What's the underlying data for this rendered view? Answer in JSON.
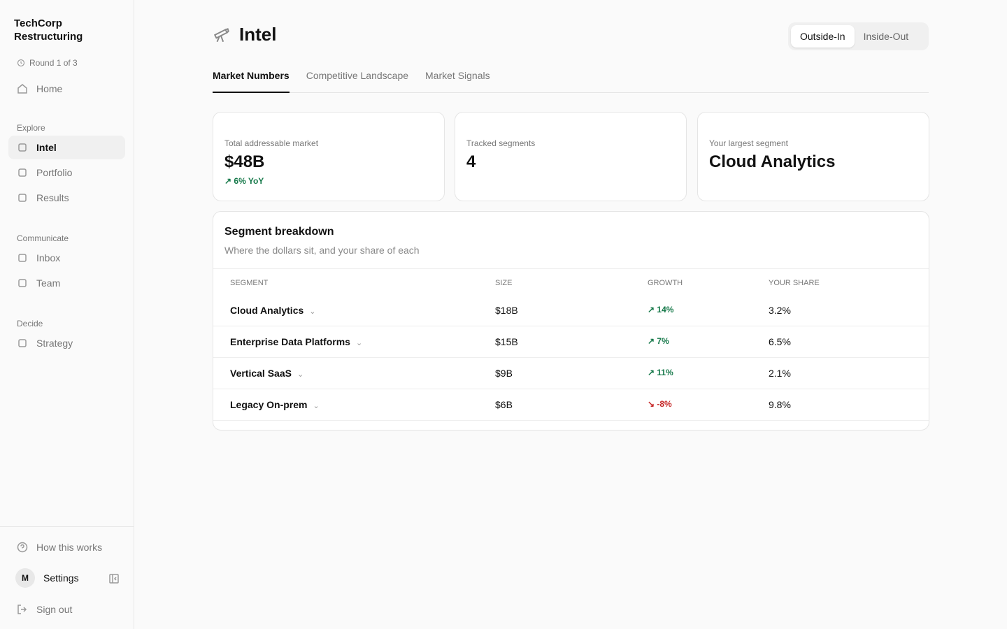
{
  "sidebar": {
    "brand": "TechCorp Restructuring",
    "round": "Round 1 of 3",
    "home": "Home",
    "sections": [
      {
        "label": "Explore",
        "items": [
          "Intel",
          "Portfolio",
          "Results"
        ]
      },
      {
        "label": "Communicate",
        "items": [
          "Inbox",
          "Team"
        ]
      },
      {
        "label": "Decide",
        "items": [
          "Strategy"
        ]
      }
    ],
    "help": "How this works",
    "avatar": "M",
    "settings": "Settings",
    "sign_out": "Sign out"
  },
  "header": {
    "title": "Intel",
    "toggle": [
      "Outside-In",
      "Inside-Out"
    ],
    "tabs": [
      "Market Numbers",
      "Competitive Landscape",
      "Market Signals"
    ]
  },
  "cards": [
    {
      "label": "Total addressable market",
      "value": "$48B",
      "delta": "6% YoY"
    },
    {
      "label": "Tracked segments",
      "value": "4"
    },
    {
      "label": "Your largest segment",
      "value": "Cloud Analytics"
    }
  ],
  "table": {
    "title": "Segment breakdown",
    "subtitle": "Where the dollars sit, and your share of each",
    "columns": [
      "SEGMENT",
      "SIZE",
      "GROWTH",
      "YOUR SHARE"
    ],
    "rows": [
      [
        "Cloud Analytics",
        "$18B",
        "14%",
        "3.2%"
      ],
      [
        "Enterprise Data Platforms",
        "$15B",
        "7%",
        "6.5%"
      ],
      [
        "Vertical SaaS",
        "$9B",
        "11%",
        "2.1%"
      ],
      [
        "Legacy On-prem",
        "$6B",
        "-8%",
        "9.8%"
      ]
    ]
  }
}
